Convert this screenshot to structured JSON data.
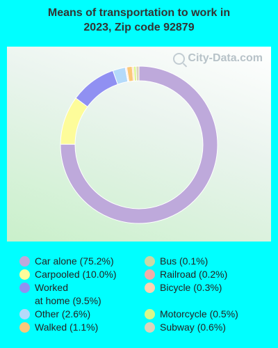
{
  "title_line1": "Means of transportation to work in",
  "title_line2": "2023, Zip code 92879",
  "watermark": "City-Data.com",
  "chart_data": {
    "type": "pie",
    "title": "Means of transportation to work in 2023, Zip code 92879",
    "series": [
      {
        "name": "Car alone",
        "label": "Car alone (75.2%)",
        "value": 75.2,
        "color": "#bea9db"
      },
      {
        "name": "Carpooled",
        "label": "Carpooled (10.0%)",
        "value": 10.0,
        "color": "#fdfc9a"
      },
      {
        "name": "Worked at home",
        "label_line1": "Worked",
        "label_line2": "at home (9.5%)",
        "value": 9.5,
        "color": "#9090f2"
      },
      {
        "name": "Other",
        "label": "Other (2.6%)",
        "value": 2.6,
        "color": "#b4dafa"
      },
      {
        "name": "Walked",
        "label": "Walked (1.1%)",
        "value": 1.1,
        "color": "#fbc87a"
      },
      {
        "name": "Bus",
        "label": "Bus (0.1%)",
        "value": 0.1,
        "color": "#c9d9a6"
      },
      {
        "name": "Railroad",
        "label": "Railroad (0.2%)",
        "value": 0.2,
        "color": "#f2aea8"
      },
      {
        "name": "Bicycle",
        "label": "Bicycle (0.3%)",
        "value": 0.3,
        "color": "#fdd4b2"
      },
      {
        "name": "Motorcycle",
        "label": "Motorcycle (0.5%)",
        "value": 0.5,
        "color": "#d8f88a"
      },
      {
        "name": "Subway",
        "label": "Subway (0.6%)",
        "value": 0.6,
        "color": "#dcd4bc"
      }
    ]
  }
}
